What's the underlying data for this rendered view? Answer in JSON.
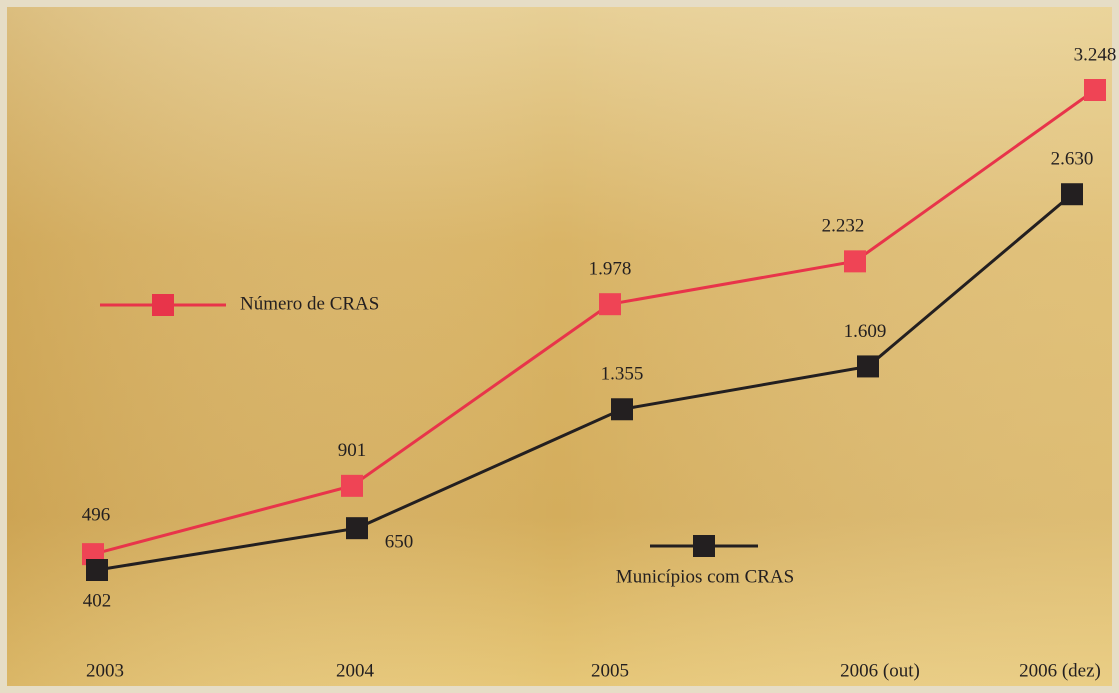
{
  "chart_data": {
    "type": "line",
    "categories": [
      "2003",
      "2004",
      "2005",
      "2006 (out)",
      "2006 (dez)"
    ],
    "series": [
      {
        "name": "Número de CRAS",
        "color": "#e8344a",
        "values": [
          496,
          901,
          1978,
          2232,
          3248
        ],
        "value_labels": [
          "496",
          "901",
          "1.978",
          "2.232",
          "3.248"
        ]
      },
      {
        "name": "Municípios com CRAS",
        "color": "#231f20",
        "values": [
          402,
          650,
          1355,
          1609,
          2630
        ],
        "value_labels": [
          "402",
          "650",
          "1.355",
          "1.609",
          "2.630"
        ]
      }
    ]
  }
}
